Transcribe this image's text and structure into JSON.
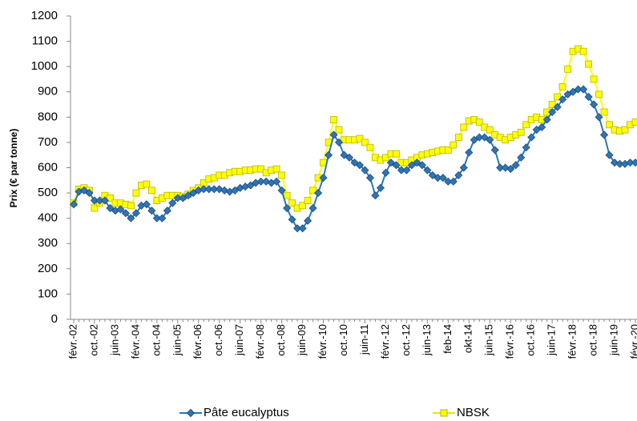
{
  "chart_data": {
    "type": "line",
    "y_label": "Prix (€ par tonne)",
    "ylim": [
      0,
      1200
    ],
    "yticks": [
      0,
      100,
      200,
      300,
      400,
      500,
      600,
      700,
      800,
      900,
      1000,
      1100,
      1200
    ],
    "categories": [
      "févr.-02",
      null,
      null,
      null,
      "oct.-02",
      null,
      null,
      null,
      "juin-03",
      null,
      null,
      null,
      "févr.-04",
      null,
      null,
      null,
      "oct.-04",
      null,
      null,
      null,
      "juin-05",
      null,
      null,
      null,
      "févr.-06",
      null,
      null,
      null,
      "oct.-06",
      null,
      null,
      null,
      "juin-07",
      null,
      null,
      null,
      "févr.-08",
      null,
      null,
      null,
      "oct.-08",
      null,
      null,
      null,
      "juin-09",
      null,
      null,
      null,
      "févr.-10",
      null,
      null,
      null,
      "oct.-10",
      null,
      null,
      null,
      "juin-11",
      null,
      null,
      null,
      "févr.-12",
      null,
      null,
      null,
      "oct.-12",
      null,
      null,
      null,
      "juin-13",
      null,
      null,
      null,
      "feb-14",
      null,
      null,
      null,
      "okt-14",
      null,
      null,
      null,
      "juin-15",
      null,
      null,
      null,
      "févr.-16",
      null,
      null,
      null,
      "oct.-16",
      null,
      null,
      null,
      "juin-17",
      null,
      null,
      null,
      "févr.-18",
      null,
      null,
      null,
      "oct.-18",
      null,
      null,
      null,
      "juin-19",
      null,
      null,
      null,
      "févr.-20"
    ],
    "series": [
      {
        "name": "Pâte eucalyptus",
        "color": "#2e75b6",
        "marker": "diamond",
        "values": [
          455,
          505,
          510,
          500,
          470,
          470,
          470,
          440,
          430,
          435,
          420,
          400,
          420,
          450,
          455,
          430,
          400,
          400,
          430,
          460,
          480,
          480,
          490,
          500,
          510,
          515,
          515,
          515,
          515,
          510,
          505,
          510,
          520,
          525,
          530,
          540,
          545,
          545,
          540,
          545,
          510,
          440,
          395,
          360,
          360,
          390,
          440,
          500,
          560,
          650,
          730,
          700,
          650,
          640,
          620,
          610,
          590,
          560,
          490,
          520,
          580,
          620,
          610,
          590,
          590,
          610,
          620,
          610,
          590,
          570,
          560,
          560,
          545,
          545,
          570,
          600,
          660,
          710,
          720,
          720,
          710,
          670,
          600,
          600,
          595,
          610,
          640,
          680,
          720,
          750,
          760,
          790,
          820,
          840,
          870,
          890,
          900,
          910,
          910,
          880,
          850,
          800,
          730,
          650,
          620,
          615,
          615,
          620,
          620
        ]
      },
      {
        "name": "NBSK",
        "color": "#ffff00",
        "marker": "square",
        "values": [
          460,
          515,
          520,
          510,
          440,
          460,
          490,
          480,
          460,
          460,
          455,
          450,
          500,
          530,
          535,
          510,
          470,
          480,
          490,
          490,
          490,
          485,
          495,
          510,
          520,
          540,
          555,
          560,
          570,
          570,
          580,
          585,
          585,
          590,
          590,
          595,
          595,
          580,
          590,
          595,
          570,
          490,
          460,
          440,
          450,
          470,
          510,
          560,
          620,
          700,
          790,
          750,
          710,
          710,
          710,
          715,
          700,
          680,
          640,
          630,
          640,
          655,
          655,
          620,
          620,
          630,
          640,
          650,
          655,
          660,
          665,
          670,
          670,
          690,
          720,
          760,
          785,
          790,
          780,
          760,
          750,
          730,
          720,
          710,
          720,
          730,
          740,
          770,
          790,
          800,
          790,
          820,
          850,
          880,
          920,
          990,
          1060,
          1070,
          1060,
          1010,
          950,
          890,
          820,
          770,
          750,
          745,
          750,
          770,
          780
        ]
      }
    ]
  }
}
